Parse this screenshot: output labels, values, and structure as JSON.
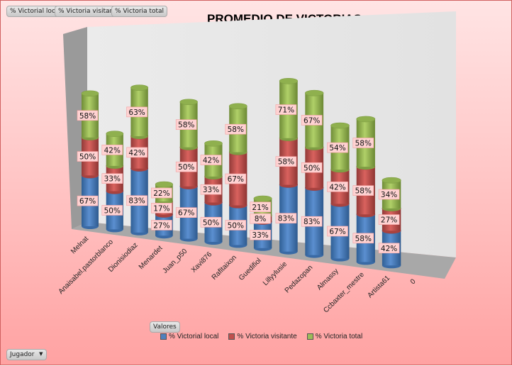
{
  "field_buttons": [
    "% Victorial local",
    "% Victoria visitante",
    "% Victoria total"
  ],
  "values_button": "Valores",
  "row_field": {
    "label": "Jugador",
    "icon": "dropdown-arrow-icon"
  },
  "colors": {
    "local": "#4f81bd",
    "visitante": "#c0504d",
    "total": "#9bbb59",
    "label_bg": "#ffd0d0"
  },
  "chart_data": {
    "type": "bar",
    "subtype": "3d-stacked-cylinder",
    "title": "PROMEDIO DE VICTORIAS",
    "categories": [
      "Melnat",
      "Anaisabel.pastorblanco",
      "Dionisiodiaz",
      "Menardet",
      "Juan_p50",
      "Xavi876",
      "Rafitaixon",
      "Guedifiol",
      "Lillyylusie",
      "Pedazopan",
      "Almassy",
      "Ccbaxter_mestre",
      "Artista61",
      "0"
    ],
    "series": [
      {
        "name": "% Victorial local",
        "values": [
          67,
          50,
          83,
          27,
          67,
          50,
          50,
          33,
          83,
          83,
          67,
          58,
          42,
          null
        ]
      },
      {
        "name": "% Victoria visitante",
        "values": [
          50,
          33,
          42,
          17,
          50,
          33,
          67,
          8,
          58,
          50,
          42,
          58,
          27,
          null
        ]
      },
      {
        "name": "% Victoria total",
        "values": [
          58,
          42,
          63,
          22,
          58,
          42,
          58,
          21,
          71,
          67,
          54,
          58,
          34,
          null
        ]
      }
    ],
    "value_format": "percent",
    "legend": "bottom",
    "grid": false
  }
}
